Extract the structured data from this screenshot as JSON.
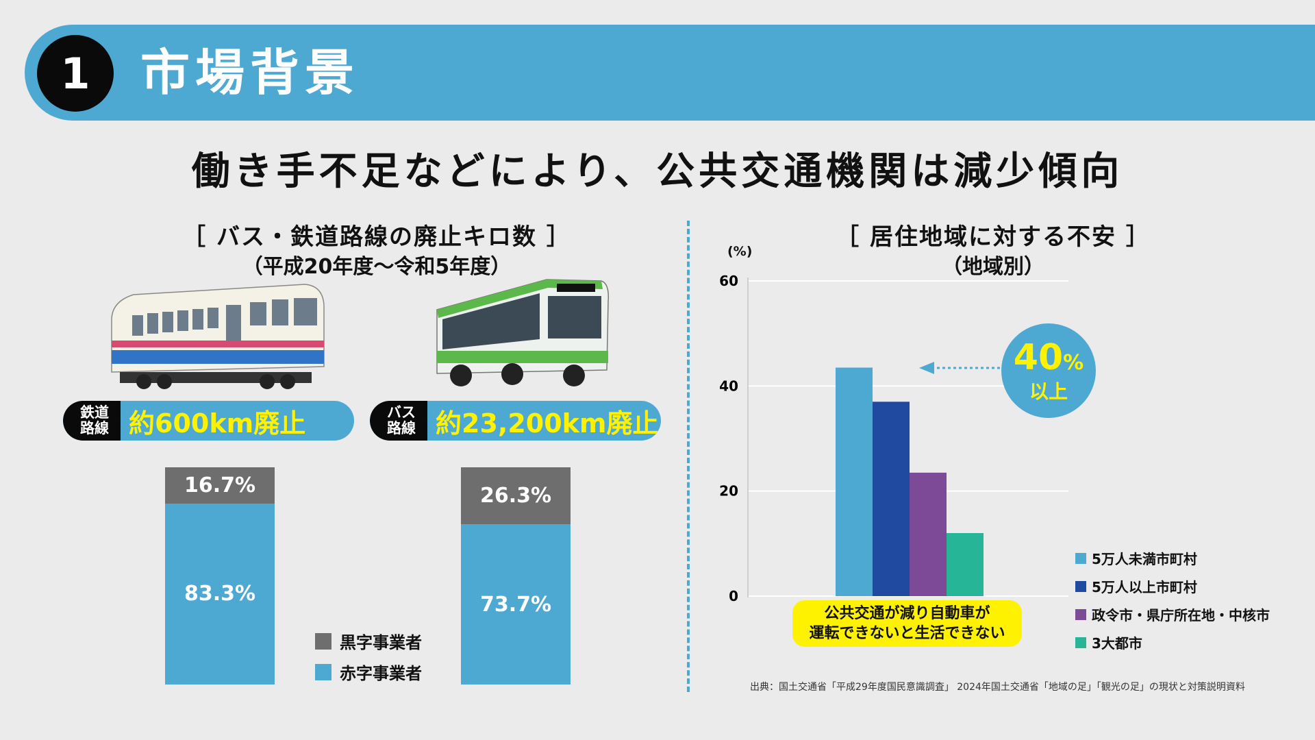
{
  "header": {
    "number": "1",
    "title": "市場背景"
  },
  "headline": "働き手不足などにより、公共交通機関は減少傾向",
  "left_panel": {
    "title": "［ バス・鉄道路線の廃止キロ数 ］",
    "subtitle": "（平成20年度〜令和5年度）",
    "rail": {
      "label_line1": "鉄道",
      "label_line2": "路線",
      "value": "約600km廃止",
      "black_pct": "16.7%",
      "red_pct": "83.3%",
      "black_share": 16.7,
      "red_share": 83.3
    },
    "bus": {
      "label_line1": "バス",
      "label_line2": "路線",
      "value": "約23,200km廃止",
      "black_pct": "26.3%",
      "red_pct": "73.7%",
      "black_share": 26.3,
      "red_share": 73.7
    },
    "legend": {
      "black": "黒字事業者",
      "red": "赤字事業者"
    }
  },
  "right_panel": {
    "title": "［ 居住地域に対する不安 ］",
    "subtitle": "（地域別）",
    "callout": {
      "value": "40",
      "unit": "%",
      "suffix": "以上"
    },
    "note_line1": "公共交通が減り自動車が",
    "note_line2": "運転できないと生活できない"
  },
  "colors": {
    "accent": "#4da9d2",
    "highlight": "#fff200",
    "black_segment": "#6e6e6e"
  },
  "chart_data": {
    "type": "bar",
    "title": "［ 居住地域に対する不安 ］",
    "subtitle": "（地域別）",
    "ylabel": "(%)",
    "ylim": [
      0,
      60
    ],
    "yticks": [
      0,
      20,
      40,
      60
    ],
    "categories": [
      "公共交通が減り自動車が運転できないと生活できない"
    ],
    "series": [
      {
        "name": "5万人未満市町村",
        "values": [
          43.5
        ],
        "color": "#4da9d2"
      },
      {
        "name": "5万人以上市町村",
        "values": [
          37
        ],
        "color": "#1f4aa0"
      },
      {
        "name": "政令市・県庁所在地・中核市",
        "values": [
          23.5
        ],
        "color": "#7c4a96"
      },
      {
        "name": "3大都市",
        "values": [
          12
        ],
        "color": "#27b597"
      }
    ]
  },
  "source": "出典：国土交通省「平成29年度国民意識調査」 2024年国土交通省「地域の足」「観光の足」の現状と対策説明資料"
}
